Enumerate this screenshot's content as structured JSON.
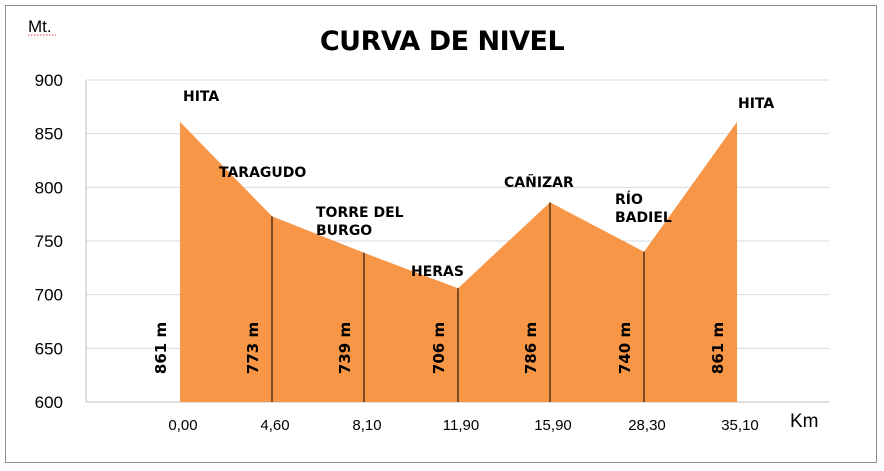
{
  "chart_data": {
    "type": "area",
    "title": "CURVA DE NIVEL",
    "xlabel": "Km",
    "ylabel": "Mt.",
    "ylim": [
      600,
      900
    ],
    "yticks": [
      "900",
      "850",
      "800",
      "750",
      "700",
      "650",
      "600"
    ],
    "grid": true,
    "fill_color": "#F79646",
    "categories": [
      "0,00",
      "4,60",
      "8,10",
      "11,90",
      "15,90",
      "28,30",
      "35,10"
    ],
    "series": [
      {
        "values": [
          861,
          773,
          739,
          706,
          786,
          740,
          861
        ]
      }
    ],
    "elevation_labels": [
      "861 m",
      "773 m",
      "739 m",
      "706 m",
      "786 m",
      "740 m",
      "861 m"
    ],
    "place_labels": [
      {
        "lines": [
          "HITA"
        ]
      },
      {
        "lines": [
          "TARAGUDO"
        ]
      },
      {
        "lines": [
          "TORRE DEL",
          "BURGO"
        ]
      },
      {
        "lines": [
          "HERAS"
        ]
      },
      {
        "lines": [
          "CAÑIZAR"
        ]
      },
      {
        "lines": [
          "RÍO",
          "BADIEL"
        ]
      },
      {
        "lines": [
          "HITA"
        ]
      }
    ]
  }
}
